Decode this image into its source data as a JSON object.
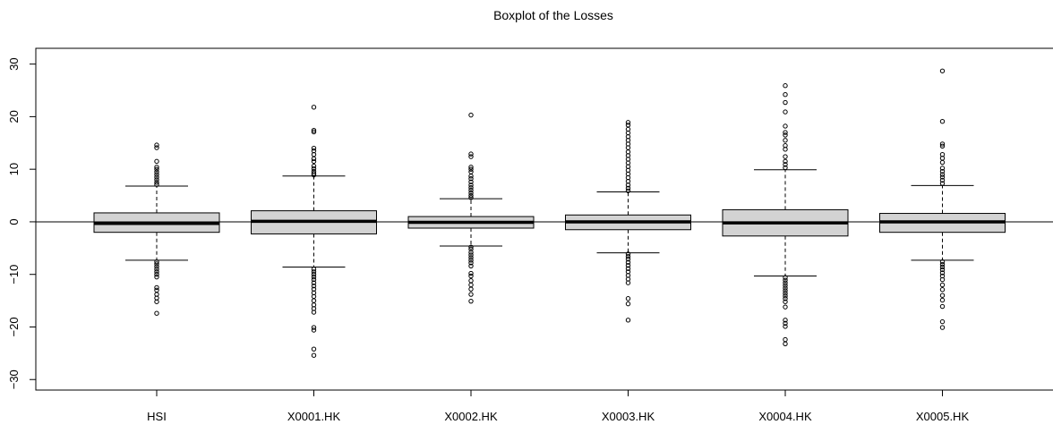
{
  "chart_data": {
    "type": "boxplot",
    "title": "Boxplot of the Losses",
    "xlabel": "",
    "ylabel": "",
    "ylim": [
      -32,
      33
    ],
    "y_ticks": [
      -30,
      -20,
      -10,
      0,
      10,
      20,
      30
    ],
    "y_tick_labels": [
      "−30",
      "−20",
      "−10",
      "0",
      "10",
      "20",
      "30"
    ],
    "reference_line_y": 0,
    "grid": false,
    "legend": "none",
    "box_fill": "#d3d3d3",
    "line_color": "#000000",
    "categories": [
      "HSI",
      "X0001.HK",
      "X0002.HK",
      "X0003.HK",
      "X0004.HK",
      "X0005.HK"
    ],
    "boxes": [
      {
        "name": "HSI",
        "whisker_low": -7.3,
        "q1": -2.0,
        "median": -0.3,
        "q3": 1.7,
        "whisker_high": 6.8,
        "outliers": [
          14.6,
          14.1,
          11.5,
          10.4,
          10.0,
          9.5,
          9.0,
          8.5,
          8.0,
          7.5,
          7.1,
          -7.6,
          -8.0,
          -8.5,
          -9.0,
          -9.5,
          -10.0,
          -10.5,
          -12.5,
          -13.0,
          -13.8,
          -14.5,
          -15.2,
          -17.4
        ]
      },
      {
        "name": "X0001.HK",
        "whisker_low": -8.6,
        "q1": -2.3,
        "median": 0.1,
        "q3": 2.1,
        "whisker_high": 8.7,
        "outliers": [
          21.8,
          17.4,
          17.1,
          14.0,
          13.5,
          12.8,
          12.0,
          11.5,
          10.6,
          10.1,
          9.6,
          9.2,
          8.9,
          -9.0,
          -9.5,
          -10.0,
          -10.5,
          -11.0,
          -11.6,
          -12.2,
          -12.8,
          -13.5,
          -14.2,
          -15.0,
          -15.8,
          -16.5,
          -17.2,
          -20.1,
          -20.6,
          -24.2,
          -25.4
        ]
      },
      {
        "name": "X0002.HK",
        "whisker_low": -4.6,
        "q1": -1.2,
        "median": -0.1,
        "q3": 1.0,
        "whisker_high": 4.4,
        "outliers": [
          20.3,
          12.9,
          12.4,
          10.4,
          10.0,
          9.5,
          8.7,
          8.2,
          7.6,
          7.0,
          6.5,
          6.0,
          5.5,
          5.0,
          4.6,
          -4.8,
          -5.2,
          -5.8,
          -6.3,
          -6.8,
          -7.3,
          -7.8,
          -8.4,
          -9.8,
          -10.3,
          -11.2,
          -12.0,
          -12.8,
          -13.8,
          -15.1
        ]
      },
      {
        "name": "X0003.HK",
        "whisker_low": -5.9,
        "q1": -1.5,
        "median": 0.0,
        "q3": 1.3,
        "whisker_high": 5.7,
        "outliers": [
          18.9,
          18.4,
          17.6,
          16.9,
          16.2,
          15.5,
          14.8,
          14.1,
          13.3,
          12.6,
          11.9,
          11.2,
          10.5,
          9.8,
          9.1,
          8.4,
          7.7,
          7.0,
          6.4,
          5.9,
          -6.1,
          -6.6,
          -7.1,
          -7.7,
          -8.3,
          -8.9,
          -9.5,
          -10.2,
          -10.9,
          -11.6,
          -14.6,
          -15.6,
          -18.7
        ]
      },
      {
        "name": "X0004.HK",
        "whisker_low": -10.3,
        "q1": -2.7,
        "median": -0.2,
        "q3": 2.3,
        "whisker_high": 9.9,
        "outliers": [
          25.9,
          24.2,
          22.7,
          20.9,
          18.2,
          17.0,
          16.5,
          15.5,
          14.5,
          13.8,
          12.4,
          11.5,
          10.9,
          10.3,
          -10.6,
          -11.1,
          -11.6,
          -12.1,
          -12.6,
          -13.1,
          -13.6,
          -14.1,
          -14.6,
          -15.2,
          -16.2,
          -18.7,
          -19.3,
          -19.9,
          -22.4,
          -23.2
        ]
      },
      {
        "name": "X0005.HK",
        "whisker_low": -7.3,
        "q1": -2.0,
        "median": 0.0,
        "q3": 1.6,
        "whisker_high": 6.9,
        "outliers": [
          28.7,
          19.1,
          14.8,
          14.4,
          12.8,
          12.1,
          11.3,
          10.2,
          9.6,
          9.0,
          8.5,
          7.9,
          7.3,
          -7.6,
          -8.1,
          -8.6,
          -9.1,
          -9.7,
          -10.3,
          -11.0,
          -12.0,
          -12.9,
          -14.0,
          -14.9,
          -16.1,
          -19.0,
          -20.1
        ]
      }
    ]
  }
}
